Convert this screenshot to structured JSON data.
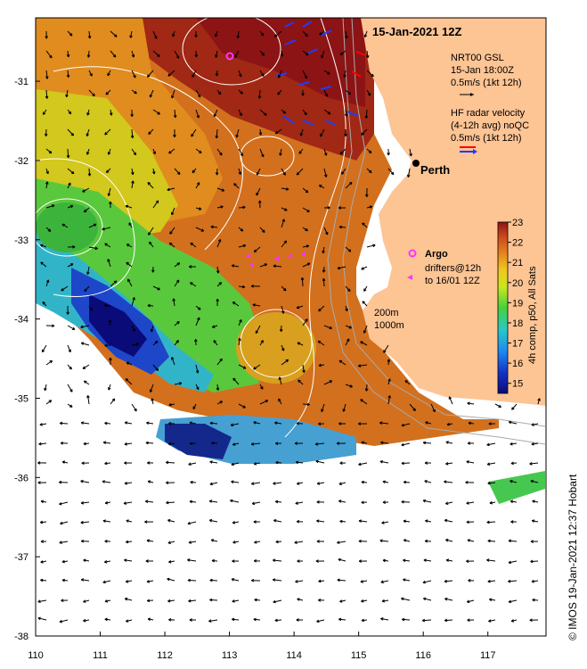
{
  "title": "15-Jan-2021 12Z",
  "city": {
    "name": "Perth",
    "lon": 115.86,
    "lat": -31.95
  },
  "axes": {
    "lon_ticks": [
      "110",
      "111",
      "112",
      "113",
      "114",
      "115",
      "116",
      "117"
    ],
    "lat_ticks": [
      "-31",
      "-32",
      "-33",
      "-34",
      "-35",
      "-36",
      "-37",
      "-38"
    ],
    "lon_range": [
      110,
      117.9
    ],
    "lat_range": [
      -30.2,
      -38.0
    ]
  },
  "legend": {
    "model_name": "NRT00 GSL",
    "model_time": "15-Jan 18:00Z",
    "model_scale": "0.5m/s (1kt 12h)",
    "radar_line1": "HF radar velocity",
    "radar_line2": "(4-12h avg) noQC",
    "radar_scale": "0.5m/s (1kt 12h)",
    "argo_label": "Argo",
    "drifters_line1": "drifters@12h",
    "drifters_line2": "to 16/01 12Z",
    "isobath_200": "200m",
    "isobath_1000": "1000m"
  },
  "colorbar": {
    "ticks": [
      "15",
      "16",
      "17",
      "18",
      "19",
      "20",
      "21",
      "22",
      "23"
    ],
    "min": 14.5,
    "max": 23,
    "label": "4h comp, p50, All Sats"
  },
  "credit": "© IMOS 19-Jan-2021 12:37 Hobart",
  "colors": {
    "land": "#fdc494",
    "ocean_no_data": "#ffffff",
    "argo": "#ff33ff",
    "radar_vec_a": "#ff0000",
    "radar_vec_b": "#1e3cff",
    "contour": "#ffffff",
    "isobath": "#aaaaaa"
  }
}
